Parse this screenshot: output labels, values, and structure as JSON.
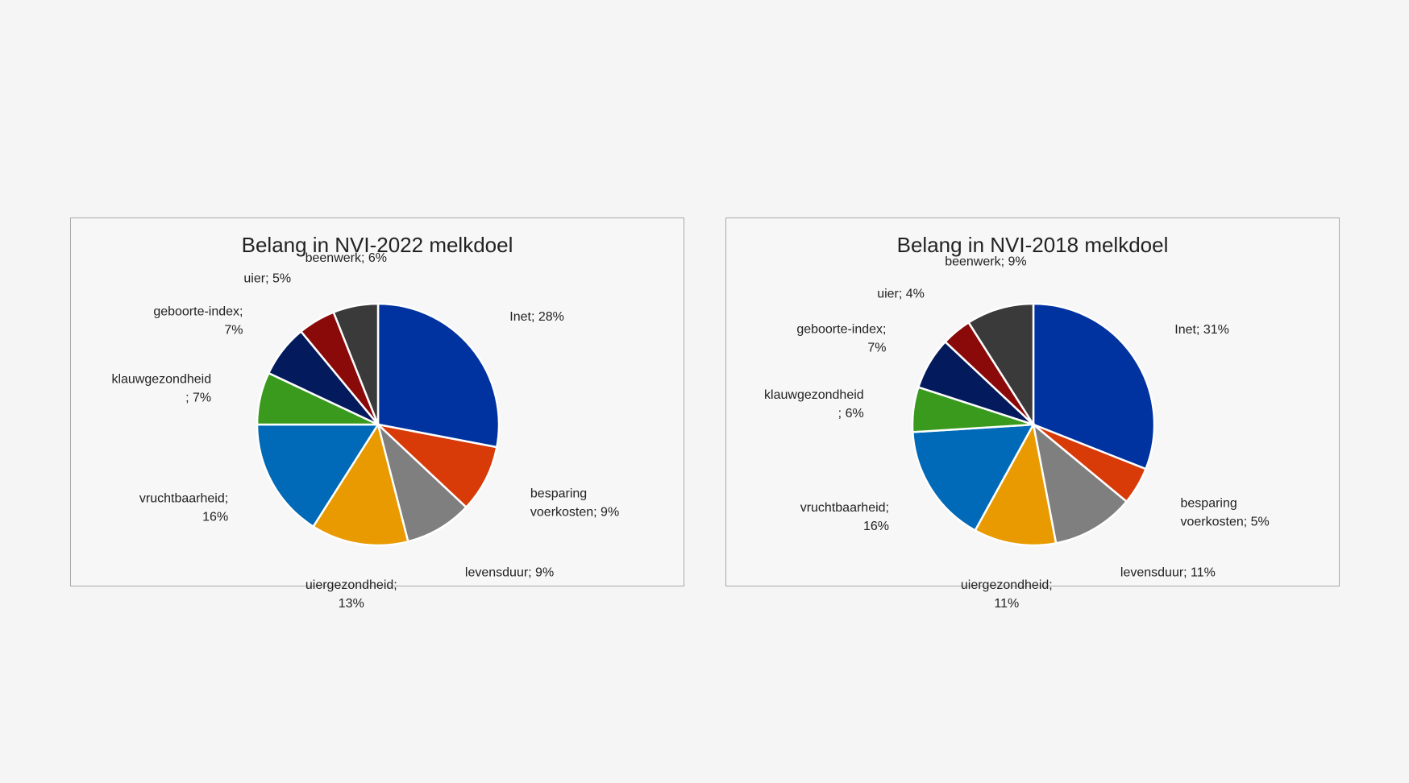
{
  "chart_data": [
    {
      "type": "pie",
      "title": "Belang in NVI-2022 melkdoel",
      "slices": [
        {
          "name": "Inet",
          "value": 28,
          "label": [
            "Inet; 28%"
          ],
          "color": "#0033a0"
        },
        {
          "name": "besparing voerkosten",
          "value": 9,
          "label": [
            "besparing",
            "voerkosten; 9%"
          ],
          "color": "#d83a08"
        },
        {
          "name": "levensduur",
          "value": 9,
          "label": [
            "levensduur; 9%"
          ],
          "color": "#7f7f7f"
        },
        {
          "name": "uiergezondheid",
          "value": 13,
          "label": [
            "uiergezondheid;",
            "13%"
          ],
          "color": "#e89a00"
        },
        {
          "name": "vruchtbaarheid",
          "value": 16,
          "label": [
            "vruchtbaarheid;",
            "16%"
          ],
          "color": "#0069b8"
        },
        {
          "name": "klauwgezondheid",
          "value": 7,
          "label": [
            "klauwgezondheid",
            "; 7%"
          ],
          "color": "#3a9a1e"
        },
        {
          "name": "geboorte-index",
          "value": 7,
          "label": [
            "geboorte-index;",
            "7%"
          ],
          "color": "#031a5c"
        },
        {
          "name": "uier",
          "value": 5,
          "label": [
            "uier; 5%"
          ],
          "color": "#8a0a0a"
        },
        {
          "name": "beenwerk",
          "value": 6,
          "label": [
            "beenwerk; 6%"
          ],
          "color": "#3a3a3a"
        }
      ]
    },
    {
      "type": "pie",
      "title": "Belang in NVI-2018 melkdoel",
      "slices": [
        {
          "name": "Inet",
          "value": 31,
          "label": [
            "Inet; 31%"
          ],
          "color": "#0033a0"
        },
        {
          "name": "besparing voerkosten",
          "value": 5,
          "label": [
            "besparing",
            "voerkosten; 5%"
          ],
          "color": "#d83a08"
        },
        {
          "name": "levensduur",
          "value": 11,
          "label": [
            "levensduur; 11%"
          ],
          "color": "#7f7f7f"
        },
        {
          "name": "uiergezondheid",
          "value": 11,
          "label": [
            "uiergezondheid;",
            "11%"
          ],
          "color": "#e89a00"
        },
        {
          "name": "vruchtbaarheid",
          "value": 16,
          "label": [
            "vruchtbaarheid;",
            "16%"
          ],
          "color": "#0069b8"
        },
        {
          "name": "klauwgezondheid",
          "value": 6,
          "label": [
            "klauwgezondheid",
            "; 6%"
          ],
          "color": "#3a9a1e"
        },
        {
          "name": "geboorte-index",
          "value": 7,
          "label": [
            "geboorte-index;",
            "7%"
          ],
          "color": "#031a5c"
        },
        {
          "name": "uier",
          "value": 4,
          "label": [
            "uier; 4%"
          ],
          "color": "#8a0a0a"
        },
        {
          "name": "beenwerk",
          "value": 9,
          "label": [
            "beenwerk; 9%"
          ],
          "color": "#3a3a3a"
        }
      ]
    }
  ]
}
